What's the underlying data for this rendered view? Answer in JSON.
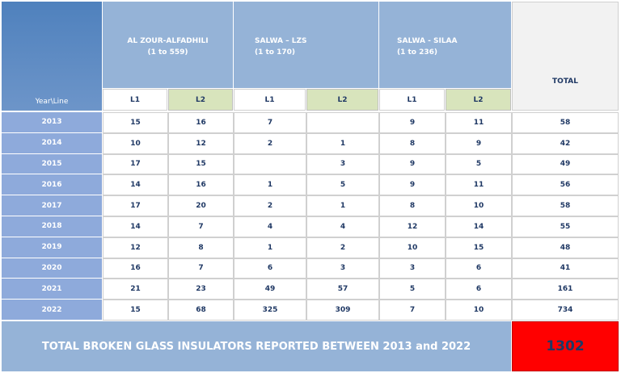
{
  "header": {
    "corner": "Year\\Line",
    "groups": [
      {
        "name": "AL ZOUR-ALFADHILI",
        "range": "(1 to 559)"
      },
      {
        "name": "SALWA – LZS",
        "range": "(1 to 170)"
      },
      {
        "name": "SALWA - SILAA",
        "range": "(1 to 236)"
      }
    ],
    "subheaders": [
      "L1",
      "L2",
      "L1",
      "L2",
      "L1",
      "L2"
    ],
    "total": "TOTAL"
  },
  "rows": [
    {
      "year": "2013",
      "values": [
        15,
        16,
        7,
        null,
        9,
        11
      ],
      "total": 58
    },
    {
      "year": "2014",
      "values": [
        10,
        12,
        2,
        1,
        8,
        9
      ],
      "total": 42
    },
    {
      "year": "2015",
      "values": [
        17,
        15,
        null,
        3,
        9,
        5
      ],
      "total": 49
    },
    {
      "year": "2016",
      "values": [
        14,
        16,
        1,
        5,
        9,
        11
      ],
      "total": 56
    },
    {
      "year": "2017",
      "values": [
        17,
        20,
        2,
        1,
        8,
        10
      ],
      "total": 58
    },
    {
      "year": "2018",
      "values": [
        14,
        7,
        4,
        4,
        12,
        14
      ],
      "total": 55
    },
    {
      "year": "2019",
      "values": [
        12,
        8,
        1,
        2,
        10,
        15
      ],
      "total": 48
    },
    {
      "year": "2020",
      "values": [
        16,
        7,
        6,
        3,
        3,
        6
      ],
      "total": 41
    },
    {
      "year": "2021",
      "values": [
        21,
        23,
        49,
        57,
        5,
        6
      ],
      "total": 161
    },
    {
      "year": "2022",
      "values": [
        15,
        68,
        325,
        309,
        7,
        10
      ],
      "total": 734
    }
  ],
  "footer": {
    "label": "TOTAL BROKEN GLASS INSULATORS REPORTED BETWEEN 2013 and 2022",
    "value": 1302
  }
}
